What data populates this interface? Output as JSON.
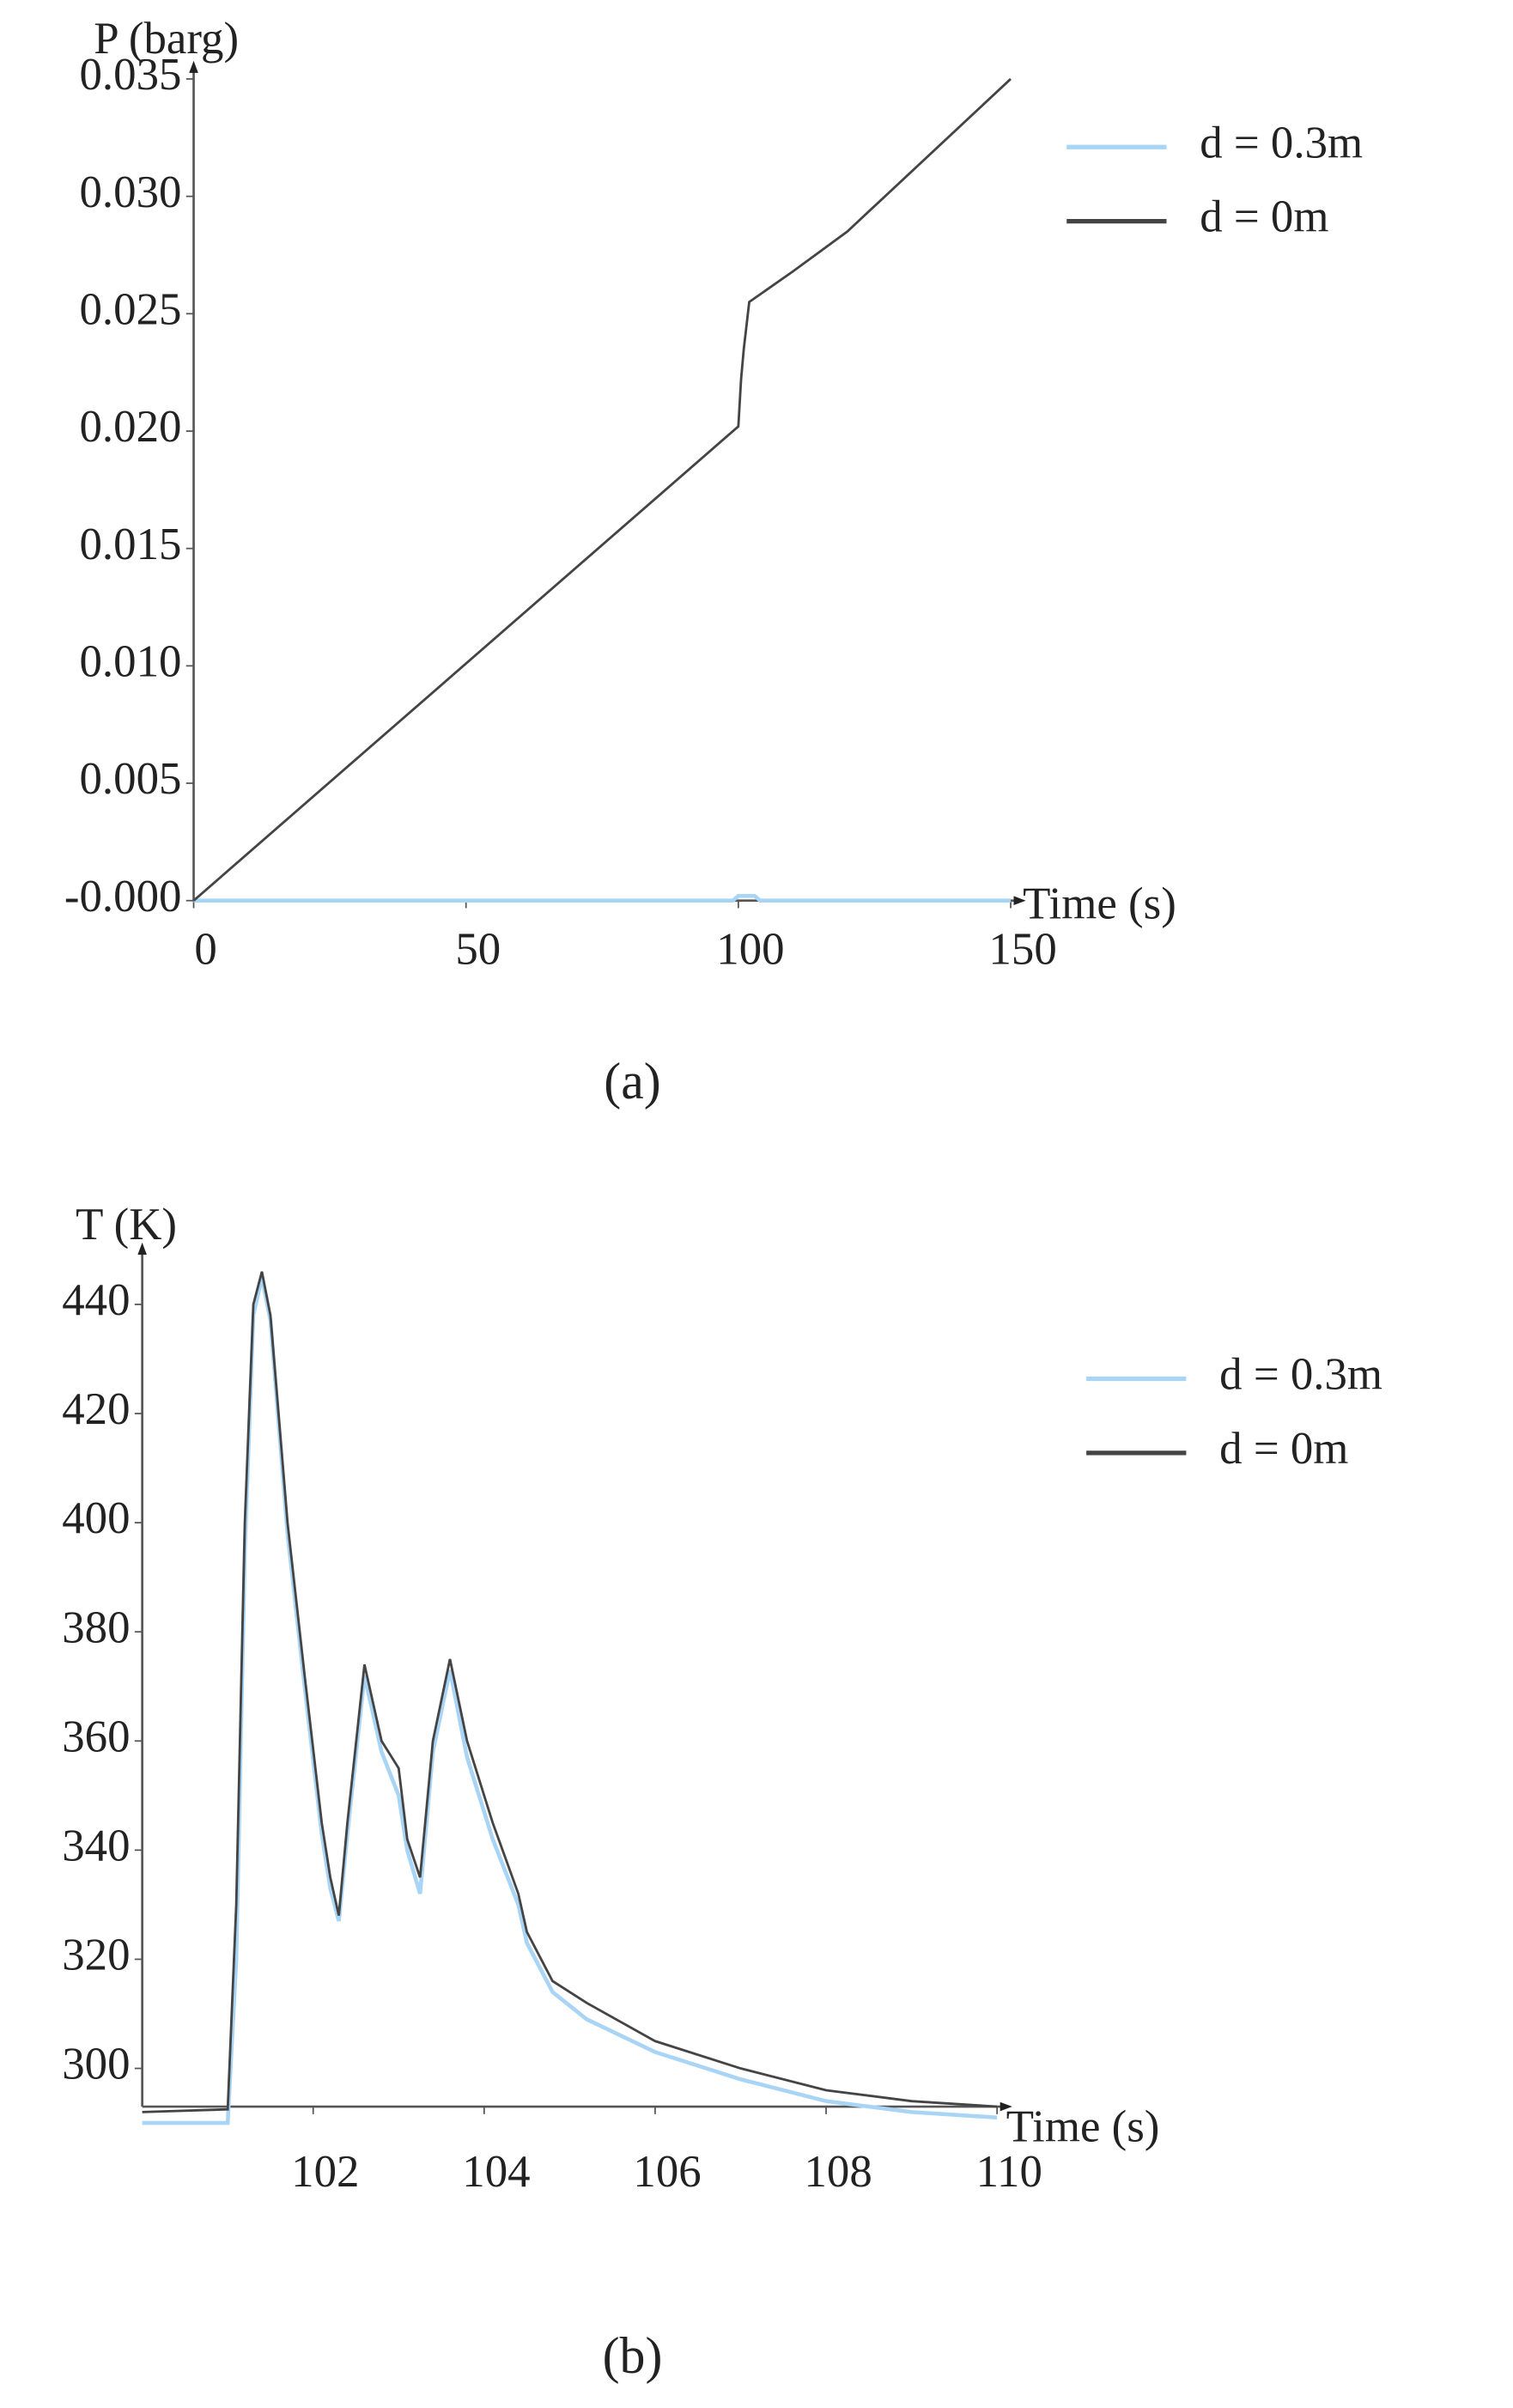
{
  "chart_data": [
    {
      "type": "line",
      "caption": "(a)",
      "y_label": "P (barg)",
      "x_label": "Time (s)",
      "xlim": [
        0,
        150
      ],
      "xticks": [
        0,
        50,
        100,
        150
      ],
      "ylim": [
        0,
        0.035
      ],
      "yticks": [
        {
          "value": 0,
          "label": "-0.000"
        },
        0.005,
        {
          "value": 0.01,
          "label": "0.010"
        },
        0.015,
        {
          "value": 0.02,
          "label": "0.020"
        },
        0.025,
        {
          "value": 0.03,
          "label": "0.030"
        },
        0.035
      ],
      "series": [
        {
          "name": "d = 0.3m",
          "color": "#a8d4f5",
          "x": [
            0,
            99,
            100,
            103,
            104,
            150
          ],
          "values": [
            0,
            0,
            0.0002,
            0.0002,
            0,
            0
          ]
        },
        {
          "name": "d = 0m",
          "color": "#444444",
          "x": [
            0,
            100,
            100.5,
            101,
            102,
            110,
            120,
            150
          ],
          "values": [
            0,
            0.0202,
            0.0222,
            0.0235,
            0.0255,
            0.0268,
            0.0285,
            0.035
          ]
        }
      ]
    },
    {
      "type": "line",
      "caption": "(b)",
      "y_label": "T (K)",
      "x_label": "Time (s)",
      "xlim": [
        100,
        110
      ],
      "xticks": [
        102,
        104,
        106,
        108,
        110
      ],
      "ylim": [
        293,
        448
      ],
      "yticks": [
        300,
        320,
        340,
        360,
        380,
        400,
        420,
        440
      ],
      "series": [
        {
          "name": "d = 0.3m",
          "color": "#a8d4f5",
          "x": [
            100,
            101,
            101.1,
            101.2,
            101.3,
            101.4,
            101.5,
            101.7,
            101.9,
            102.1,
            102.2,
            102.3,
            102.4,
            102.6,
            102.8,
            103.0,
            103.1,
            103.25,
            103.4,
            103.6,
            103.8,
            104.1,
            104.4,
            104.5,
            104.8,
            105.2,
            106,
            107,
            108,
            109,
            110
          ],
          "values": [
            290,
            290,
            320,
            395,
            438,
            445,
            437,
            398,
            370,
            343,
            333,
            327,
            343,
            372,
            358,
            350,
            340,
            332,
            358,
            373,
            357,
            342,
            330,
            323,
            314,
            309,
            303,
            298,
            294,
            292,
            291
          ]
        },
        {
          "name": "d = 0m",
          "color": "#444444",
          "x": [
            100,
            101,
            101.1,
            101.2,
            101.3,
            101.4,
            101.5,
            101.7,
            101.9,
            102.1,
            102.2,
            102.3,
            102.4,
            102.6,
            102.8,
            103.0,
            103.1,
            103.25,
            103.4,
            103.6,
            103.8,
            104.1,
            104.4,
            104.5,
            104.8,
            105.2,
            106,
            107,
            108,
            109,
            110
          ],
          "values": [
            292,
            292.5,
            330,
            400,
            440,
            446,
            438,
            400,
            372,
            345,
            335,
            328,
            345,
            374,
            360,
            355,
            342,
            335,
            360,
            375,
            360,
            345,
            332,
            325,
            316,
            312,
            305,
            300,
            296,
            294,
            293
          ]
        }
      ]
    }
  ]
}
